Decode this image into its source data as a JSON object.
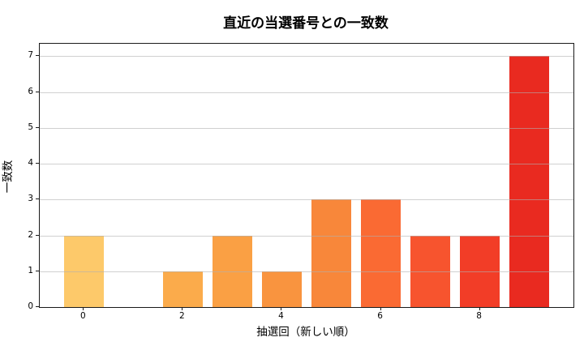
{
  "chart_data": {
    "type": "bar",
    "title": "直近の当選番号との一致数",
    "xlabel": "抽選回（新しい順）",
    "ylabel": "一致数",
    "categories": [
      0,
      1,
      2,
      3,
      4,
      5,
      6,
      7,
      8,
      9
    ],
    "values": [
      2,
      0,
      1,
      2,
      1,
      3,
      3,
      2,
      2,
      7
    ],
    "bar_colors": [
      "#fdc96a",
      "#fcba55",
      "#fbab4b",
      "#faa044",
      "#f9943f",
      "#f8873a",
      "#fa6a33",
      "#f7542e",
      "#f23d27",
      "#e92a20"
    ],
    "xticks": [
      0,
      2,
      4,
      6,
      8
    ],
    "yticks": [
      0,
      1,
      2,
      3,
      4,
      5,
      6,
      7
    ],
    "xlim": [
      -0.89,
      9.89
    ],
    "ylim": [
      0,
      7.35
    ],
    "bar_width": 0.8,
    "grid": "horizontal, drawn above bars",
    "grid_color": "rgba(176,176,176,0.6)",
    "background": "#ffffff",
    "spine_color": "#1a1a1a",
    "legend": "none"
  }
}
